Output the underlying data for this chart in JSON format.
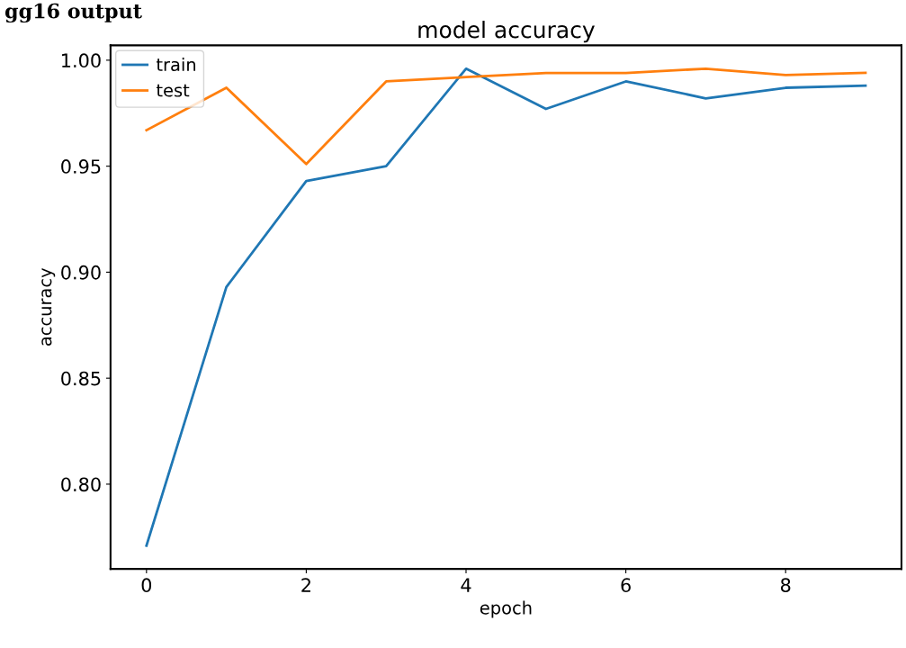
{
  "chart_data": {
    "type": "line",
    "title": "model accuracy",
    "xlabel": "epoch",
    "ylabel": "accuracy",
    "annotations": [
      "gg16 output"
    ],
    "x": [
      0,
      1,
      2,
      3,
      4,
      5,
      6,
      7,
      8,
      9
    ],
    "series": [
      {
        "name": "train",
        "color": "#1f77b4",
        "values": [
          0.771,
          0.893,
          0.943,
          0.95,
          0.996,
          0.977,
          0.99,
          0.982,
          0.987,
          0.988
        ]
      },
      {
        "name": "test",
        "color": "#ff7f0e",
        "values": [
          0.967,
          0.987,
          0.951,
          0.99,
          0.992,
          0.994,
          0.994,
          0.996,
          0.993,
          0.994
        ]
      }
    ],
    "xlim": [
      -0.45,
      9.45
    ],
    "xticks": [
      0,
      2,
      4,
      6,
      8
    ],
    "ylim": [
      0.76,
      1.007
    ],
    "yticks": [
      {
        "value": 0.8,
        "label": "0.80"
      },
      {
        "value": 0.85,
        "label": "0.85"
      },
      {
        "value": 0.9,
        "label": "0.90"
      },
      {
        "value": 0.95,
        "label": "0.95"
      },
      {
        "value": 1.0,
        "label": "1.00"
      }
    ],
    "grid": false,
    "legend": "top left"
  }
}
